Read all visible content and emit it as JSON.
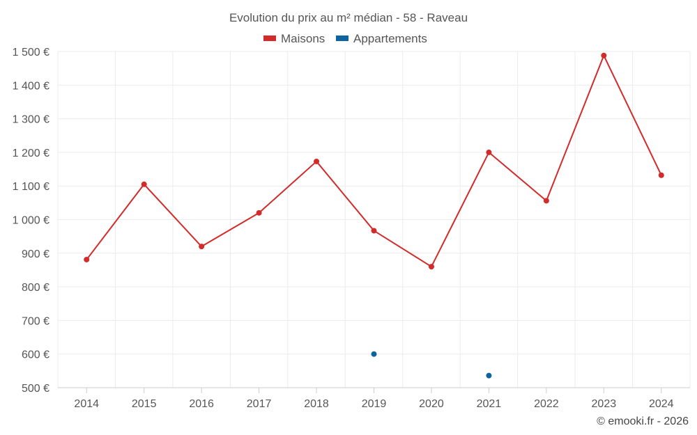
{
  "chart_data": {
    "type": "line",
    "title": "Evolution du prix au m² médian - 58 - Raveau",
    "categories": [
      "2014",
      "2015",
      "2016",
      "2017",
      "2018",
      "2019",
      "2020",
      "2021",
      "2022",
      "2023",
      "2024"
    ],
    "series": [
      {
        "name": "Maisons",
        "color": "#d32a2a",
        "values": [
          881,
          1105,
          920,
          1020,
          1173,
          967,
          860,
          1200,
          1056,
          1488,
          1132
        ]
      },
      {
        "name": "Appartements",
        "color": "#0d64a0",
        "values": [
          null,
          null,
          null,
          null,
          null,
          600,
          null,
          536,
          null,
          null,
          null
        ]
      }
    ],
    "y_ticks": [
      "500 €",
      "600 €",
      "700 €",
      "800 €",
      "900 €",
      "1 000 €",
      "1 100 €",
      "1 200 €",
      "1 300 €",
      "1 400 €",
      "1 500 €"
    ],
    "ylim": [
      500,
      1500
    ],
    "grid": true,
    "legend_position": "top-center"
  },
  "credit": "© emooki.fr - 2026"
}
